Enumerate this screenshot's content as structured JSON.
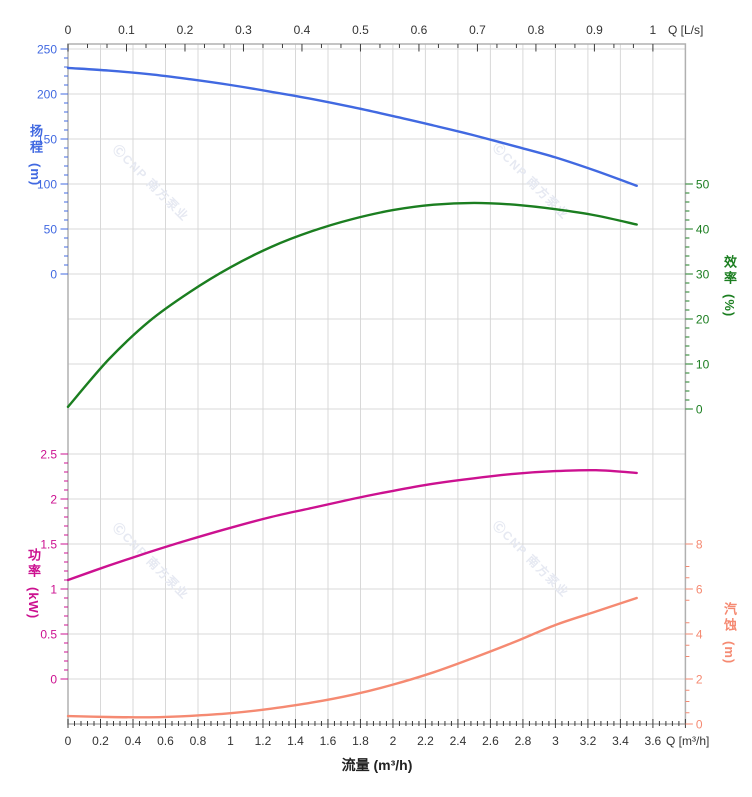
{
  "watermark": {
    "text": "ⒸCNP 南方泵业",
    "color": "#e6e9f2"
  },
  "chart_data": {
    "type": "line",
    "grid": true,
    "legend": false,
    "x": {
      "label": "流量 (m³/h)",
      "unit_label": "Q [m³/h]",
      "range": [
        0,
        3.8
      ],
      "tick_step": 0.2,
      "ticks": [
        "0",
        "0.2",
        "0.4",
        "0.6",
        "0.8",
        "1",
        "1.2",
        "1.4",
        "1.6",
        "1.8",
        "2",
        "2.2",
        "2.4",
        "2.6",
        "2.8",
        "3",
        "3.2",
        "3.4",
        "3.6"
      ]
    },
    "x_top": {
      "unit_label": "Q [L/s]",
      "range": [
        0,
        1.056
      ],
      "tick_step": 0.1,
      "ticks": [
        "0",
        "0.1",
        "0.2",
        "0.3",
        "0.4",
        "0.5",
        "0.6",
        "0.7",
        "0.8",
        "0.9",
        "1"
      ]
    },
    "axes": {
      "head": {
        "title": "扬程",
        "unit": "(m)",
        "color": "#4169e1",
        "range": [
          0,
          250
        ],
        "ticks": [
          "250",
          "200",
          "150",
          "100",
          "50",
          "0"
        ]
      },
      "efficiency": {
        "title": "效率",
        "unit": "(%)",
        "color": "#1b7e20",
        "range": [
          0,
          50
        ],
        "ticks": [
          "50",
          "40",
          "30",
          "20",
          "10",
          "0"
        ]
      },
      "power": {
        "title": "功率",
        "unit": "(kW)",
        "color": "#cc1190",
        "range": [
          0,
          2.5
        ],
        "ticks": [
          "2.5",
          "2",
          "1.5",
          "1",
          "0.5",
          "0"
        ]
      },
      "npsh": {
        "title": "汽蚀",
        "unit": "(m)",
        "color": "#f58a72",
        "range": [
          0,
          8
        ],
        "ticks": [
          "8",
          "6",
          "4",
          "2",
          "0"
        ]
      }
    },
    "series": [
      {
        "name": "head",
        "label": "扬程",
        "axis": "head",
        "color": "#4169e1",
        "x": [
          0,
          0.25,
          0.5,
          0.75,
          1,
          1.25,
          1.5,
          1.75,
          2,
          2.25,
          2.5,
          2.75,
          3,
          3.25,
          3.5
        ],
        "y": [
          229,
          226,
          222,
          216.5,
          210,
          202.5,
          194.5,
          185.5,
          175.5,
          165,
          154,
          142,
          129.5,
          114.5,
          98
        ]
      },
      {
        "name": "efficiency",
        "label": "效率",
        "axis": "efficiency",
        "color": "#1b7e20",
        "x": [
          0,
          0.25,
          0.5,
          0.75,
          1,
          1.25,
          1.5,
          1.75,
          2,
          2.25,
          2.5,
          2.75,
          3,
          3.25,
          3.5
        ],
        "y": [
          0.5,
          11,
          19.5,
          26,
          31.5,
          36,
          39.5,
          42.2,
          44.2,
          45.4,
          45.8,
          45.4,
          44.4,
          43,
          41
        ]
      },
      {
        "name": "power",
        "label": "功率",
        "axis": "power",
        "color": "#cc1190",
        "x": [
          0,
          0.25,
          0.5,
          0.75,
          1,
          1.25,
          1.5,
          1.75,
          2,
          2.25,
          2.5,
          2.75,
          3,
          3.25,
          3.5
        ],
        "y": [
          1.1,
          1.26,
          1.41,
          1.55,
          1.68,
          1.8,
          1.9,
          2.0,
          2.09,
          2.17,
          2.23,
          2.28,
          2.31,
          2.32,
          2.29
        ]
      },
      {
        "name": "npsh",
        "label": "汽蚀",
        "axis": "npsh",
        "color": "#f58a72",
        "x": [
          0,
          0.25,
          0.5,
          0.75,
          1,
          1.25,
          1.5,
          1.75,
          2,
          2.25,
          2.5,
          2.75,
          3,
          3.25,
          3.5
        ],
        "y": [
          0.35,
          0.31,
          0.3,
          0.36,
          0.48,
          0.68,
          0.95,
          1.3,
          1.75,
          2.3,
          2.95,
          3.65,
          4.4,
          5.0,
          5.6
        ]
      }
    ]
  }
}
